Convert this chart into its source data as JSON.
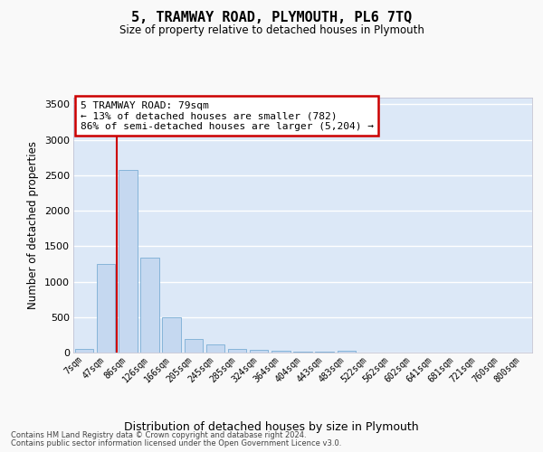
{
  "title1": "5, TRAMWAY ROAD, PLYMOUTH, PL6 7TQ",
  "title2": "Size of property relative to detached houses in Plymouth",
  "xlabel": "Distribution of detached houses by size in Plymouth",
  "ylabel": "Number of detached properties",
  "categories": [
    "7sqm",
    "47sqm",
    "86sqm",
    "126sqm",
    "166sqm",
    "205sqm",
    "245sqm",
    "285sqm",
    "324sqm",
    "364sqm",
    "404sqm",
    "443sqm",
    "483sqm",
    "522sqm",
    "562sqm",
    "602sqm",
    "641sqm",
    "681sqm",
    "721sqm",
    "760sqm",
    "800sqm"
  ],
  "values": [
    50,
    1255,
    2570,
    1340,
    495,
    195,
    110,
    55,
    35,
    20,
    18,
    12,
    30,
    0,
    0,
    0,
    0,
    0,
    0,
    0,
    0
  ],
  "bar_color": "#c5d8f0",
  "bar_edge_color": "#7aadd4",
  "bg_color": "#dce8f7",
  "grid_color": "#ffffff",
  "vline_color": "#cc0000",
  "vline_x": 1.5,
  "ann_text_line1": "5 TRAMWAY ROAD: 79sqm",
  "ann_text_line2": "← 13% of detached houses are smaller (782)",
  "ann_text_line3": "86% of semi-detached houses are larger (5,204) →",
  "ann_box_color": "#cc0000",
  "ylim": [
    0,
    3600
  ],
  "yticks": [
    0,
    500,
    1000,
    1500,
    2000,
    2500,
    3000,
    3500
  ],
  "footer1": "Contains HM Land Registry data © Crown copyright and database right 2024.",
  "footer2": "Contains public sector information licensed under the Open Government Licence v3.0.",
  "fig_bg": "#f9f9f9"
}
